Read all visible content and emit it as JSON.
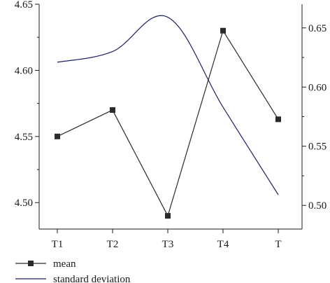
{
  "chart_data": {
    "type": "line",
    "categories": [
      "T1",
      "T2",
      "T3",
      "T4",
      "T"
    ],
    "series": [
      {
        "name": "mean",
        "axis": "left",
        "marker": "square",
        "color": "#2b2b2b",
        "values": [
          4.55,
          4.57,
          4.49,
          4.63,
          4.563
        ]
      },
      {
        "name": "standard deviation",
        "axis": "right",
        "marker": "none",
        "smooth": true,
        "color": "#1c1f66",
        "values": [
          0.621,
          0.63,
          0.659,
          0.583,
          0.509
        ]
      }
    ],
    "y_left": {
      "ylim": [
        4.48,
        4.65
      ],
      "ticks": [
        4.5,
        4.55,
        4.6,
        4.65
      ],
      "tick_labels": [
        "4.50",
        "4.55",
        "4.60",
        "4.65"
      ]
    },
    "y_right": {
      "ylim": [
        0.48,
        0.67
      ],
      "ticks": [
        0.5,
        0.55,
        0.6,
        0.65
      ],
      "tick_labels": [
        "0.50",
        "0.55",
        "0.60",
        "0.65"
      ]
    },
    "title": "",
    "xlabel": "",
    "ylabel": "",
    "grid": false,
    "legend_position": "bottom-left"
  },
  "legend": {
    "mean_label": "mean",
    "std_label": "standard deviation"
  }
}
